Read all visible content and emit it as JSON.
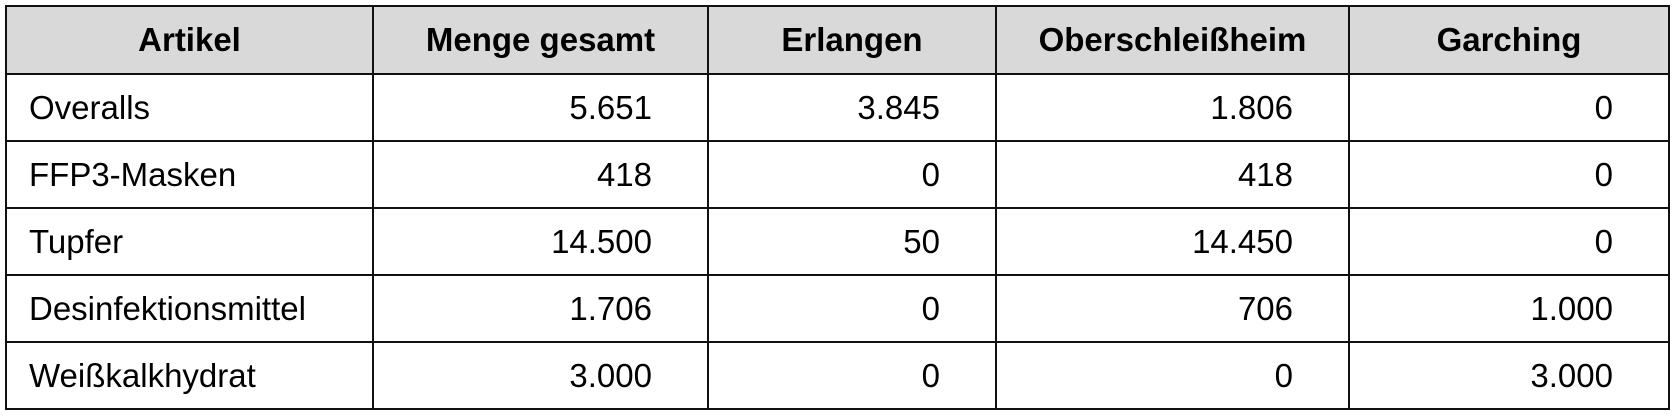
{
  "table": {
    "header": [
      "Artikel",
      "Menge gesamt",
      "Erlangen",
      "Oberschleißheim",
      "Garching"
    ],
    "rows": [
      [
        "Overalls",
        "5.651",
        "3.845",
        "1.806",
        "0"
      ],
      [
        "FFP3-Masken",
        "418",
        "0",
        "418",
        "0"
      ],
      [
        "Tupfer",
        "14.500",
        "50",
        "14.450",
        "0"
      ],
      [
        "Desinfektionsmittel",
        "1.706",
        "0",
        "706",
        "1.000"
      ],
      [
        "Weißkalkhydrat",
        "3.000",
        "0",
        "0",
        "3.000"
      ]
    ]
  }
}
